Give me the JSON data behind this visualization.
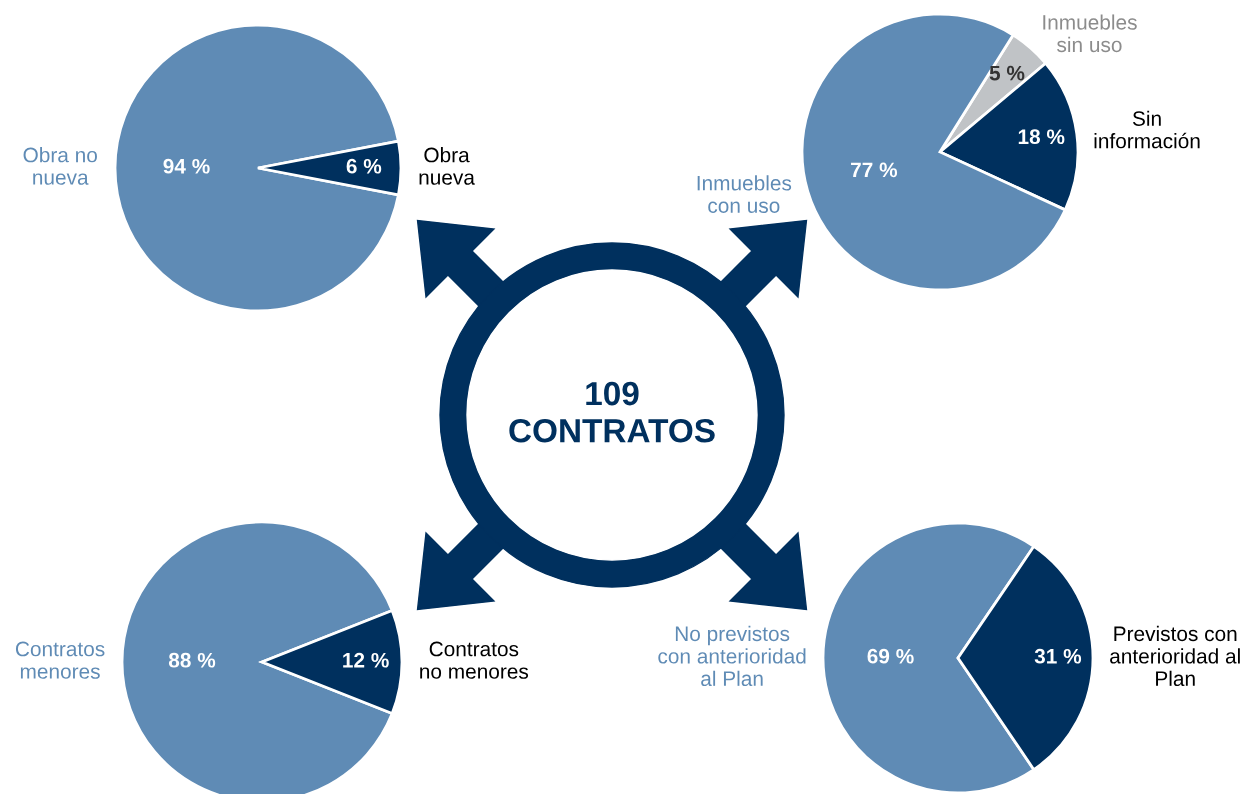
{
  "chart_data": [
    {
      "type": "pie",
      "categories": [
        "Obra no\nnueva",
        "Obra\nnueva"
      ],
      "values": [
        94,
        6
      ],
      "colors": [
        "#5f8bb5",
        "#00305e"
      ],
      "value_labels": [
        "94 %",
        "6 %"
      ]
    },
    {
      "type": "pie",
      "categories": [
        "Inmuebles\nsin uso",
        "Sin\ninformación",
        "Inmuebles\ncon uso"
      ],
      "values": [
        5,
        18,
        77
      ],
      "colors": [
        "#c0c3c6",
        "#00305e",
        "#5f8bb5"
      ],
      "value_labels": [
        "5 %",
        "18 %",
        "77 %"
      ]
    },
    {
      "type": "pie",
      "categories": [
        "Contratos\nmenores",
        "Contratos\nno menores"
      ],
      "values": [
        88,
        12
      ],
      "colors": [
        "#5f8bb5",
        "#00305e"
      ],
      "value_labels": [
        "88 %",
        "12 %"
      ]
    },
    {
      "type": "pie",
      "categories": [
        "No previstos\ncon anterioridad\nal Plan",
        "Previstos con\nanterioridad al\nPlan"
      ],
      "values": [
        69,
        31
      ],
      "colors": [
        "#5f8bb5",
        "#00305e"
      ],
      "value_labels": [
        "69 %",
        "31 %"
      ]
    },
    {
      "type": "other",
      "title": "109\nCONTRATOS"
    }
  ]
}
